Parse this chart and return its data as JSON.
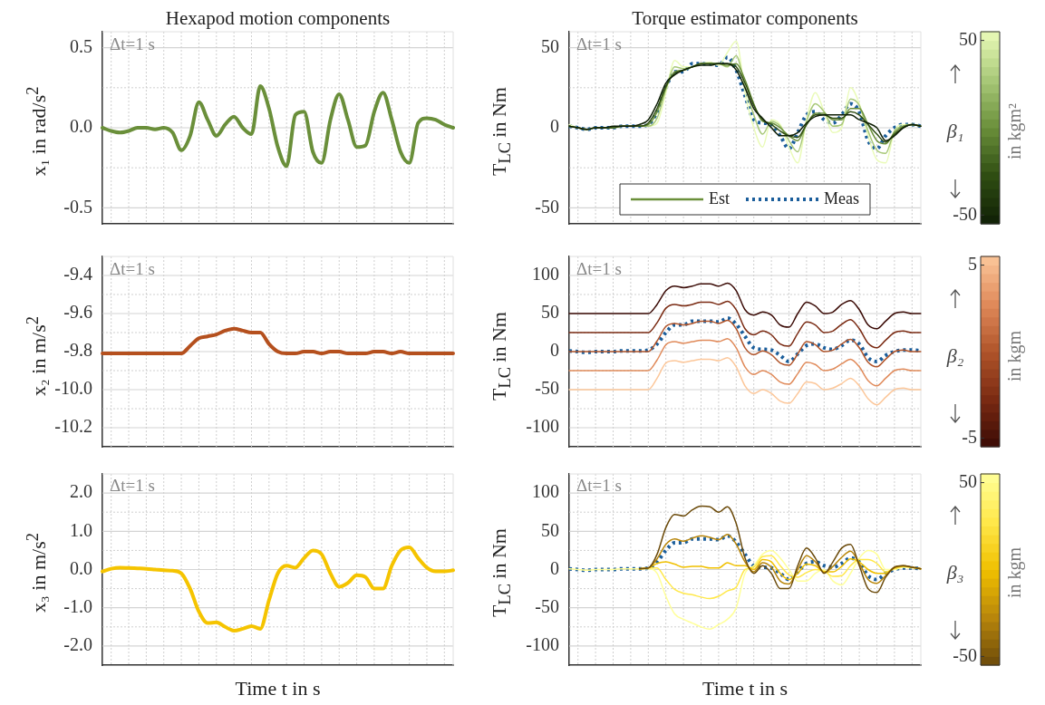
{
  "chart_data": [
    {
      "type": "line",
      "title": "Hexapod motion components",
      "ylabel": "x₁ in rad/s$^{2}$",
      "categories": [
        null,
        null,
        null,
        null,
        null,
        null,
        null,
        null,
        null,
        null,
        null,
        null,
        null,
        null,
        null,
        null,
        null,
        null,
        null,
        null,
        null,
        null,
        null,
        null,
        null,
        null,
        null,
        null,
        null,
        null,
        null,
        null,
        null,
        null,
        null,
        null,
        null,
        null,
        null,
        null,
        null
      ],
      "series": [
        {
          "color": "#6a8f3a",
          "line_style": "solid",
          "values": [
            0,
            -0.02,
            -0.03,
            -0.02,
            0,
            0,
            -0.01,
            0,
            -0.03,
            -0.14,
            -0.05,
            0.16,
            0.05,
            -0.05,
            0.02,
            0.07,
            0,
            -0.04,
            0.26,
            0.12,
            -0.12,
            -0.24,
            0.08,
            0.1,
            -0.15,
            -0.22,
            0.05,
            0.21,
            0.05,
            -0.12,
            -0.11,
            0.1,
            0.22,
            0.05,
            -0.15,
            -0.22,
            0.03,
            0.06,
            0.05,
            0.02,
            0
          ]
        }
      ],
      "ylim": [
        -0.6,
        0.6
      ],
      "yticks": [
        {
          "value": -0.5,
          "label": "-0.5"
        },
        {
          "value": 0,
          "label": "0.0"
        },
        {
          "value": 0.5,
          "label": "0.5"
        }
      ],
      "grid": true,
      "tick_labels": "y",
      "annotations": [
        "Δt=1 s"
      ]
    },
    {
      "type": "line",
      "title": "Torque estimator components",
      "ylabel": "T$_{LC}$ in Nm",
      "categories": [
        null,
        null,
        null,
        null,
        null,
        null,
        null,
        null,
        null,
        null,
        null,
        null,
        null,
        null,
        null,
        null,
        null,
        null,
        null,
        null,
        null,
        null,
        null,
        null,
        null,
        null,
        null,
        null,
        null,
        null,
        null,
        null,
        null,
        null,
        null,
        null,
        null,
        null,
        null,
        null,
        null
      ],
      "series": [
        {
          "color": "#0f1f06",
          "line_style": "solid",
          "values": [
            1,
            0,
            -1,
            0,
            0,
            1,
            1,
            1,
            2,
            5,
            15,
            28,
            33,
            36,
            38,
            39,
            39,
            40,
            40,
            36,
            25,
            12,
            6,
            0,
            -5,
            -5,
            -3,
            3,
            7,
            8,
            8,
            8,
            8,
            5,
            3,
            0,
            -8,
            -5,
            0,
            2,
            1
          ]
        },
        {
          "color": "#2f4d12",
          "line_style": "solid",
          "values": [
            1,
            0,
            -1,
            0,
            0,
            0,
            1,
            1,
            1,
            3,
            12,
            26,
            34,
            36,
            38,
            40,
            40,
            40,
            40,
            38,
            28,
            14,
            5,
            2,
            -2,
            -5,
            -6,
            2,
            8,
            8,
            6,
            6,
            10,
            8,
            2,
            -4,
            -9,
            -4,
            0,
            2,
            1
          ]
        },
        {
          "name": "Est",
          "color": "#6a8f3a",
          "line_style": "solid",
          "values": [
            1,
            0,
            -1,
            0,
            0,
            0,
            1,
            1,
            1,
            2,
            10,
            25,
            35,
            36,
            38,
            40,
            40,
            40,
            39,
            40,
            30,
            15,
            4,
            3,
            0,
            -5,
            -8,
            2,
            9,
            9,
            5,
            5,
            12,
            12,
            2,
            -8,
            -10,
            -3,
            1,
            2,
            1
          ]
        },
        {
          "color": "#a8c878",
          "line_style": "solid",
          "values": [
            1,
            0,
            -1,
            0,
            0,
            0,
            1,
            1,
            1,
            1,
            6,
            24,
            38,
            37,
            38,
            40,
            40,
            40,
            38,
            45,
            26,
            8,
            -4,
            4,
            1,
            -8,
            -15,
            4,
            15,
            10,
            1,
            2,
            18,
            14,
            -2,
            -14,
            -16,
            -2,
            1,
            2,
            1
          ]
        },
        {
          "color": "#eafbb8",
          "line_style": "solid",
          "values": [
            2,
            0,
            -1,
            0,
            0,
            0,
            1,
            1,
            1,
            1,
            3,
            22,
            42,
            38,
            38,
            40,
            41,
            39,
            47,
            54,
            22,
            0,
            -12,
            5,
            2,
            -12,
            -22,
            5,
            22,
            10,
            -3,
            0,
            25,
            15,
            -5,
            -20,
            -22,
            -2,
            2,
            2,
            1
          ]
        },
        {
          "name": "Meas",
          "color": "#1b5e9b",
          "line_style": "dotted",
          "values": [
            1,
            0,
            -1,
            0,
            0,
            0,
            1,
            1,
            1,
            2,
            10,
            25,
            35,
            35,
            40,
            40,
            40,
            39,
            44,
            36,
            20,
            5,
            3,
            2,
            -5,
            -13,
            -3,
            8,
            10,
            5,
            3,
            8,
            15,
            10,
            -8,
            -13,
            -5,
            0,
            2,
            2,
            1
          ]
        }
      ],
      "ylim": [
        -60,
        60
      ],
      "yticks": [
        -50,
        0,
        50
      ],
      "grid": true,
      "tick_labels": "y",
      "legend": "bottom",
      "clabel": "β₁",
      "clim": [
        -55,
        55
      ],
      "cticks": [
        -50,
        50
      ],
      "annotations": [
        "Δt=1 s",
        "in kgm²"
      ]
    },
    {
      "type": "line",
      "ylabel": "x₂ in m/s$^{2}$",
      "categories": [
        null,
        null,
        null,
        null,
        null,
        null,
        null,
        null,
        null,
        null,
        null,
        null,
        null,
        null,
        null,
        null,
        null,
        null,
        null,
        null,
        null,
        null,
        null,
        null,
        null,
        null,
        null,
        null,
        null,
        null,
        null,
        null,
        null,
        null,
        null,
        null,
        null,
        null,
        null,
        null,
        null
      ],
      "series": [
        {
          "color": "#b5501e",
          "line_style": "solid",
          "values": [
            -9.81,
            -9.81,
            -9.81,
            -9.81,
            -9.81,
            -9.81,
            -9.81,
            -9.81,
            -9.81,
            -9.81,
            -9.77,
            -9.73,
            -9.72,
            -9.71,
            -9.69,
            -9.68,
            -9.69,
            -9.7,
            -9.7,
            -9.76,
            -9.8,
            -9.81,
            -9.81,
            -9.8,
            -9.8,
            -9.81,
            -9.8,
            -9.8,
            -9.81,
            -9.81,
            -9.81,
            -9.8,
            -9.8,
            -9.81,
            -9.8,
            -9.81,
            -9.81,
            -9.81,
            -9.81,
            -9.81,
            -9.81
          ]
        }
      ],
      "ylim": [
        -10.3,
        -9.3
      ],
      "yticks": [
        {
          "value": -10.2,
          "label": "-10.2"
        },
        {
          "value": -10,
          "label": "-10.0"
        },
        {
          "value": -9.8,
          "label": "-9.8"
        },
        {
          "value": -9.6,
          "label": "-9.6"
        },
        {
          "value": -9.4,
          "label": "-9.4"
        }
      ],
      "grid": true,
      "tick_labels": "y",
      "annotations": [
        "Δt=1 s"
      ]
    },
    {
      "type": "line",
      "ylabel": "T$_{LC}$ in Nm",
      "categories": [
        null,
        null,
        null,
        null,
        null,
        null,
        null,
        null,
        null,
        null,
        null,
        null,
        null,
        null,
        null,
        null,
        null,
        null,
        null,
        null,
        null,
        null,
        null,
        null,
        null,
        null,
        null,
        null,
        null,
        null,
        null,
        null,
        null,
        null,
        null,
        null,
        null,
        null,
        null,
        null,
        null
      ],
      "series": [
        {
          "color": "#3a0a05",
          "line_style": "solid",
          "values": [
            50,
            50,
            50,
            50,
            50,
            50,
            50,
            50,
            50,
            50,
            62,
            80,
            86,
            84,
            86,
            89,
            89,
            86,
            90,
            80,
            55,
            48,
            52,
            48,
            35,
            32,
            50,
            65,
            60,
            50,
            52,
            62,
            67,
            55,
            35,
            30,
            40,
            50,
            52,
            50,
            50
          ]
        },
        {
          "color": "#7a2a12",
          "line_style": "solid",
          "values": [
            25,
            25,
            25,
            25,
            25,
            25,
            25,
            25,
            25,
            25,
            38,
            57,
            62,
            60,
            62,
            65,
            65,
            62,
            66,
            55,
            30,
            22,
            27,
            22,
            10,
            7,
            24,
            39,
            35,
            25,
            27,
            36,
            42,
            30,
            11,
            5,
            15,
            25,
            27,
            25,
            25
          ]
        },
        {
          "color": "#b0542a",
          "line_style": "solid",
          "values": [
            0,
            0,
            0,
            0,
            0,
            0,
            0,
            0,
            0,
            0,
            14,
            33,
            37,
            35,
            37,
            40,
            40,
            37,
            41,
            30,
            5,
            -4,
            1,
            -4,
            -15,
            -18,
            -3,
            13,
            9,
            0,
            2,
            10,
            16,
            5,
            -14,
            -20,
            -10,
            0,
            2,
            0,
            0
          ]
        },
        {
          "color": "#e08a5a",
          "line_style": "solid",
          "values": [
            -25,
            -25,
            -25,
            -25,
            -25,
            -25,
            -25,
            -25,
            -25,
            -25,
            -11,
            9,
            13,
            11,
            13,
            15,
            15,
            13,
            17,
            5,
            -20,
            -30,
            -25,
            -30,
            -40,
            -43,
            -29,
            -14,
            -17,
            -25,
            -23,
            -16,
            -10,
            -20,
            -38,
            -45,
            -35,
            -25,
            -23,
            -25,
            -25
          ]
        },
        {
          "color": "#fcc79a",
          "line_style": "solid",
          "values": [
            -50,
            -50,
            -50,
            -50,
            -50,
            -50,
            -50,
            -50,
            -50,
            -50,
            -35,
            -15,
            -12,
            -14,
            -12,
            -10,
            -10,
            -12,
            -8,
            -20,
            -45,
            -55,
            -50,
            -55,
            -65,
            -68,
            -55,
            -40,
            -42,
            -50,
            -48,
            -42,
            -35,
            -45,
            -62,
            -70,
            -60,
            -50,
            -48,
            -50,
            -50
          ]
        },
        {
          "color": "#1b5e9b",
          "line_style": "dotted",
          "values": [
            1,
            0,
            -1,
            0,
            0,
            0,
            1,
            1,
            1,
            2,
            10,
            25,
            35,
            35,
            40,
            40,
            40,
            39,
            44,
            36,
            20,
            5,
            3,
            2,
            -5,
            -13,
            -3,
            8,
            10,
            5,
            3,
            8,
            15,
            10,
            -8,
            -13,
            -5,
            0,
            2,
            2,
            1
          ]
        }
      ],
      "ylim": [
        -125,
        125
      ],
      "yticks": [
        -100,
        -50,
        0,
        50,
        100
      ],
      "grid": true,
      "tick_labels": "y",
      "clabel": "β₂",
      "clim": [
        -5.5,
        5.5
      ],
      "cticks": [
        -5,
        5
      ],
      "annotations": [
        "Δt=1 s",
        "in kgm"
      ]
    },
    {
      "type": "line",
      "xlabel": "Time t in s",
      "ylabel": "x₃ in m/s$^{2}$",
      "categories": [
        null,
        null,
        null,
        null,
        null,
        null,
        null,
        null,
        null,
        null,
        null,
        null,
        null,
        null,
        null,
        null,
        null,
        null,
        null,
        null,
        null,
        null,
        null,
        null,
        null,
        null,
        null,
        null,
        null,
        null,
        null,
        null,
        null,
        null,
        null,
        null,
        null,
        null,
        null,
        null,
        null
      ],
      "series": [
        {
          "color": "#f5c400",
          "line_style": "solid",
          "values": [
            -0.05,
            0.02,
            0.05,
            0.04,
            0.03,
            0.02,
            0,
            -0.02,
            -0.03,
            -0.1,
            -0.5,
            -1.1,
            -1.4,
            -1.38,
            -1.5,
            -1.6,
            -1.55,
            -1.48,
            -1.55,
            -0.8,
            -0.1,
            0.1,
            0.05,
            0.3,
            0.5,
            0.4,
            -0.1,
            -0.45,
            -0.35,
            -0.15,
            -0.2,
            -0.5,
            -0.5,
            0.1,
            0.5,
            0.58,
            0.3,
            0.05,
            -0.05,
            -0.05,
            -0.02
          ]
        }
      ],
      "ylim": [
        -2.5,
        2.5
      ],
      "yticks": [
        {
          "value": -2,
          "label": "-2.0"
        },
        {
          "value": -1,
          "label": "-1.0"
        },
        {
          "value": 0,
          "label": "0.0"
        },
        {
          "value": 1,
          "label": "1.0"
        },
        {
          "value": 2,
          "label": "2.0"
        }
      ],
      "grid": true,
      "tick_labels": "y",
      "annotations": [
        "Δt=1 s"
      ]
    },
    {
      "type": "line",
      "xlabel": "Time t in s",
      "ylabel": "T$_{LC}$ in Nm",
      "categories": [
        null,
        null,
        null,
        null,
        null,
        null,
        null,
        null,
        null,
        null,
        null,
        null,
        null,
        null,
        null,
        null,
        null,
        null,
        null,
        null,
        null,
        null,
        null,
        null,
        null,
        null,
        null,
        null,
        null,
        null,
        null,
        null,
        null,
        null,
        null,
        null,
        null,
        null,
        null,
        null,
        null
      ],
      "series": [
        {
          "color": "#6b4a0a",
          "line_style": "solid",
          "values": [
            null,
            null,
            null,
            null,
            null,
            null,
            null,
            null,
            1,
            2,
            20,
            55,
            72,
            70,
            78,
            83,
            82,
            75,
            82,
            60,
            15,
            -5,
            5,
            -5,
            -25,
            -25,
            5,
            28,
            15,
            -5,
            10,
            28,
            33,
            5,
            -25,
            -30,
            -10,
            3,
            5,
            3,
            1
          ]
        },
        {
          "color": "#b8860b",
          "line_style": "solid",
          "values": [
            null,
            null,
            null,
            null,
            null,
            null,
            null,
            null,
            1,
            2,
            14,
            33,
            40,
            37,
            41,
            44,
            42,
            39,
            46,
            33,
            10,
            -3,
            9,
            3,
            -15,
            -19,
            0,
            18,
            10,
            -4,
            4,
            16,
            24,
            8,
            -13,
            -18,
            -8,
            3,
            5,
            3,
            1
          ]
        },
        {
          "color": "#f0c000",
          "line_style": "solid",
          "values": [
            null,
            null,
            null,
            null,
            null,
            null,
            null,
            null,
            1,
            2,
            8,
            10,
            7,
            3,
            4,
            4,
            2,
            2,
            9,
            5,
            5,
            0,
            13,
            10,
            -5,
            -13,
            -5,
            7,
            5,
            -3,
            -3,
            4,
            14,
            10,
            0,
            -5,
            -5,
            2,
            4,
            3,
            1
          ]
        },
        {
          "color": "#ffe84a",
          "line_style": "solid",
          "values": [
            null,
            null,
            null,
            null,
            null,
            null,
            null,
            null,
            1,
            2,
            2,
            -13,
            -26,
            -31,
            -33,
            -36,
            -38,
            -35,
            -28,
            -23,
            0,
            3,
            17,
            18,
            5,
            -7,
            -10,
            -4,
            0,
            -2,
            -9,
            -8,
            5,
            13,
            13,
            8,
            -3,
            1,
            4,
            3,
            1
          ]
        },
        {
          "color": "#ffff99",
          "line_style": "solid",
          "values": [
            1,
            0,
            -1,
            0,
            0,
            0,
            1,
            1,
            1,
            1,
            -5,
            -35,
            -58,
            -65,
            -70,
            -75,
            -78,
            -72,
            -65,
            -50,
            -5,
            5,
            20,
            25,
            15,
            0,
            -15,
            -15,
            -5,
            0,
            -15,
            -20,
            -5,
            15,
            25,
            20,
            0,
            0,
            3,
            2,
            1
          ]
        },
        {
          "color": "#1b5e9b",
          "line_style": "dotted",
          "values": [
            1,
            0,
            -1,
            0,
            0,
            0,
            1,
            1,
            1,
            2,
            10,
            25,
            35,
            35,
            40,
            40,
            40,
            39,
            44,
            36,
            20,
            5,
            3,
            2,
            -5,
            -13,
            -3,
            8,
            10,
            5,
            3,
            8,
            15,
            10,
            -8,
            -13,
            -5,
            0,
            2,
            2,
            1
          ]
        }
      ],
      "ylim": [
        -125,
        125
      ],
      "yticks": [
        -100,
        -50,
        0,
        50,
        100
      ],
      "grid": true,
      "tick_labels": "y",
      "clabel": "β₃",
      "clim": [
        -55,
        55
      ],
      "cticks": [
        -50,
        50
      ],
      "annotations": [
        "Δt=1 s",
        "in kgm"
      ]
    }
  ]
}
